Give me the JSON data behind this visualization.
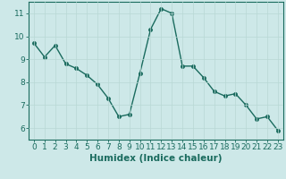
{
  "x": [
    0,
    1,
    2,
    3,
    4,
    5,
    6,
    7,
    8,
    9,
    10,
    11,
    12,
    13,
    14,
    15,
    16,
    17,
    18,
    19,
    20,
    21,
    22,
    23
  ],
  "y": [
    9.7,
    9.1,
    9.6,
    8.8,
    8.6,
    8.3,
    7.9,
    7.3,
    6.5,
    6.6,
    8.4,
    10.3,
    11.2,
    11.0,
    8.7,
    8.7,
    8.2,
    7.6,
    7.4,
    7.5,
    7.0,
    6.4,
    6.5,
    5.9
  ],
  "line_color": "#1a6b5e",
  "marker": "o",
  "markersize": 2.5,
  "linewidth": 1.0,
  "xlabel": "Humidex (Indice chaleur)",
  "xlim": [
    -0.5,
    23.5
  ],
  "ylim": [
    5.5,
    11.5
  ],
  "yticks": [
    6,
    7,
    8,
    9,
    10,
    11
  ],
  "xticks": [
    0,
    1,
    2,
    3,
    4,
    5,
    6,
    7,
    8,
    9,
    10,
    11,
    12,
    13,
    14,
    15,
    16,
    17,
    18,
    19,
    20,
    21,
    22,
    23
  ],
  "bg_color": "#cde8e8",
  "grid_color": "#b8d8d4",
  "tick_color": "#1a6b5e",
  "label_color": "#1a6b5e",
  "font_size_axis": 6.5,
  "font_size_label": 7.5
}
